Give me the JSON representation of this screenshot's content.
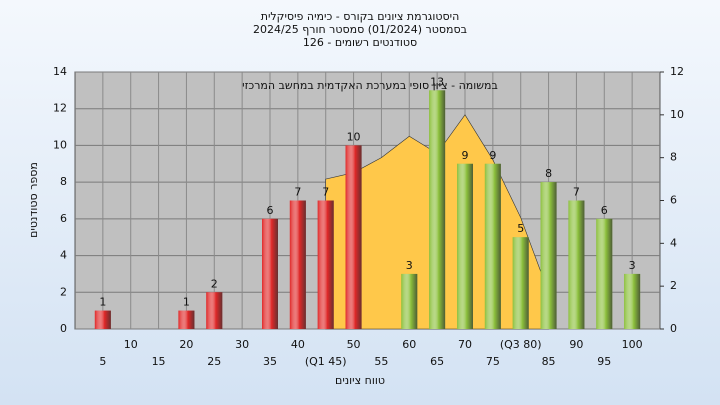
{
  "chart_data": {
    "type": "bar",
    "title": "היסטוגרמת ציונים בקורס - כימיה פיסיקלית",
    "subtitle": "בסמסטר  (01/2024)  סמסטר חורף  2024/25",
    "subtitle2": "סטודנטים רשומים - 126",
    "annotation": "במשומה - ציון סופי במערכת האקדמית במחשב המרכזי",
    "x_label": "טווח ציונים",
    "y_label": "מספר סטודנטים",
    "x": [
      5,
      10,
      15,
      20,
      25,
      30,
      35,
      40,
      45,
      50,
      55,
      60,
      65,
      70,
      75,
      80,
      85,
      90,
      95,
      100
    ],
    "values": [
      1,
      0,
      0,
      1,
      2,
      0,
      6,
      7,
      7,
      10,
      0,
      3,
      13,
      9,
      9,
      5,
      8,
      7,
      6,
      3
    ],
    "value_labels": [
      "1",
      null,
      null,
      "1",
      "2",
      null,
      "6",
      "7",
      "7",
      "10",
      null,
      "3",
      "13",
      "9",
      "9",
      "5",
      "8",
      "7",
      "6",
      "3"
    ],
    "colors": [
      "#e02828",
      "#e02828",
      "#e02828",
      "#e02828",
      "#e02828",
      "#e02828",
      "#e02828",
      "#e02828",
      "#e02828",
      "#e02828",
      "#8cc03c",
      "#8cc03c",
      "#8cc03c",
      "#8cc03c",
      "#8cc03c",
      "#8cc03c",
      "#8cc03c",
      "#8cc03c",
      "#8cc03c",
      "#8cc03c"
    ],
    "area": {
      "color": "#ffc84a",
      "axis": "y2",
      "values": [
        null,
        null,
        null,
        null,
        null,
        null,
        null,
        null,
        7,
        7.3,
        8,
        9,
        8.2,
        10,
        7.9,
        5.2,
        1.7,
        null,
        null,
        null
      ]
    },
    "xlim": [
      0,
      105
    ],
    "xticks": [
      5,
      10,
      15,
      20,
      25,
      30,
      35,
      40,
      {
        "value": 45,
        "label": "(Q1 45)"
      },
      50,
      55,
      60,
      65,
      70,
      75,
      {
        "value": 80,
        "label": "(Q3 80)"
      },
      85,
      90,
      95,
      100
    ],
    "ylim": [
      0,
      14
    ],
    "yticks": [
      0,
      2,
      4,
      6,
      8,
      10,
      12,
      14
    ],
    "y2lim": [
      0,
      12
    ],
    "y2ticks": [
      0,
      2,
      4,
      6,
      8,
      10,
      12
    ],
    "grid": true
  }
}
